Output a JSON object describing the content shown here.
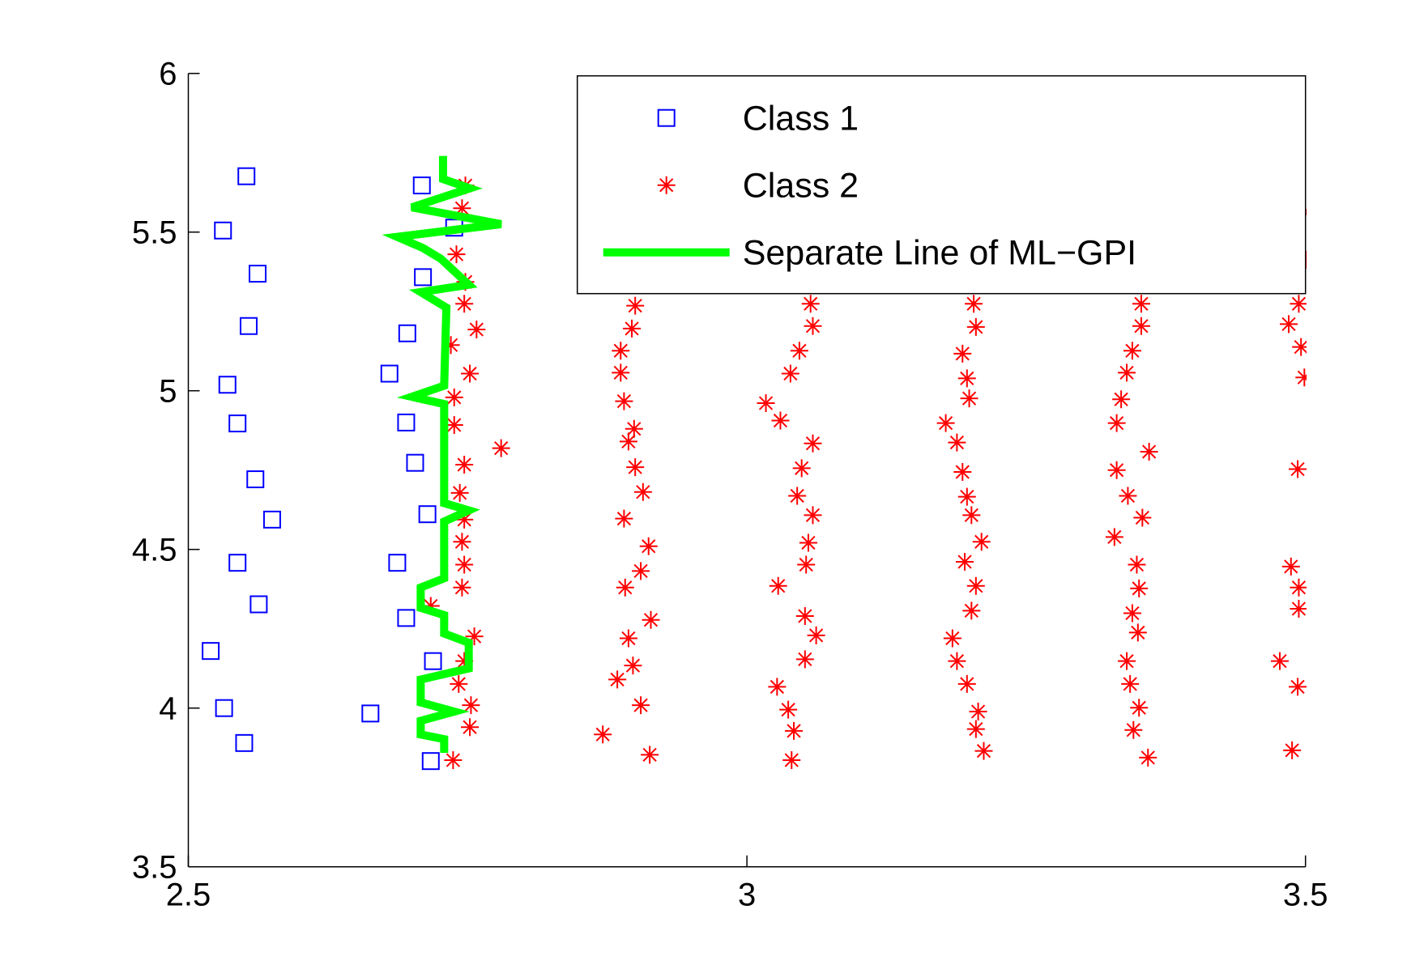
{
  "chart_data": {
    "type": "scatter",
    "xlim": [
      2.5,
      3.5
    ],
    "ylim": [
      3.5,
      6
    ],
    "xticks": [
      2.5,
      3,
      3.5
    ],
    "yticks": [
      3.5,
      4,
      4.5,
      5,
      5.5,
      6
    ],
    "legend": "upper right",
    "series": [
      {
        "name": "Class 1",
        "color": "#0000ff",
        "marker": "square",
        "x": [
          2.552,
          2.531,
          2.562,
          2.554,
          2.535,
          2.544,
          2.56,
          2.575,
          2.544,
          2.563,
          2.52,
          2.532,
          2.55,
          2.709,
          2.738,
          2.71,
          2.696,
          2.68,
          2.695,
          2.703,
          2.714,
          2.687,
          2.695,
          2.719,
          2.663,
          2.717
        ],
        "values": [
          5.676,
          5.505,
          5.369,
          5.204,
          5.019,
          4.897,
          4.721,
          4.594,
          4.458,
          4.327,
          4.18,
          4.0,
          3.89,
          5.647,
          5.514,
          5.358,
          5.181,
          5.054,
          4.9,
          4.773,
          4.611,
          4.458,
          4.284,
          4.148,
          3.983,
          3.833
        ]
      },
      {
        "name": "Class 2",
        "color": "#ff0000",
        "marker": "star",
        "x": [
          2.748,
          2.745,
          2.74,
          2.748,
          2.747,
          2.758,
          2.735,
          2.752,
          2.738,
          2.738,
          2.747,
          2.743,
          2.747,
          2.745,
          2.747,
          2.745,
          2.717,
          2.756,
          2.747,
          2.742,
          2.753,
          2.752,
          2.737,
          2.78,
          2.9,
          2.897,
          2.887,
          2.887,
          2.89,
          2.899,
          2.894,
          2.9,
          2.907,
          2.89,
          2.912,
          2.905,
          2.891,
          2.914,
          2.894,
          2.898,
          2.884,
          2.905,
          2.871,
          2.913,
          3.057,
          3.059,
          3.047,
          3.039,
          3.017,
          3.03,
          3.059,
          3.049,
          3.045,
          3.059,
          3.055,
          3.053,
          3.028,
          3.052,
          3.062,
          3.052,
          3.027,
          3.037,
          3.042,
          3.04,
          3.203,
          3.205,
          3.193,
          3.197,
          3.199,
          3.178,
          3.188,
          3.193,
          3.197,
          3.201,
          3.21,
          3.195,
          3.205,
          3.201,
          3.184,
          3.188,
          3.197,
          3.207,
          3.205,
          3.212,
          3.353,
          3.353,
          3.345,
          3.34,
          3.335,
          3.331,
          3.36,
          3.331,
          3.341,
          3.354,
          3.329,
          3.349,
          3.351,
          3.345,
          3.35,
          3.34,
          3.343,
          3.351,
          3.346,
          3.359,
          3.499,
          3.501,
          3.494,
          3.485,
          3.496,
          3.499,
          3.493,
          3.487,
          3.494,
          3.494,
          3.477,
          3.493,
          3.488
        ],
        "values": [
          5.647,
          5.575,
          5.43,
          5.343,
          5.274,
          5.193,
          5.144,
          5.054,
          4.979,
          4.892,
          4.767,
          4.678,
          4.594,
          4.524,
          4.452,
          4.38,
          4.322,
          4.226,
          4.148,
          4.076,
          4.009,
          3.94,
          3.836,
          4.819,
          5.268,
          5.196,
          5.126,
          5.057,
          4.967,
          4.88,
          4.84,
          4.759,
          4.681,
          4.597,
          4.51,
          4.432,
          4.38,
          4.278,
          4.22,
          4.134,
          4.09,
          4.009,
          3.917,
          3.853,
          5.274,
          5.204,
          5.126,
          5.054,
          4.961,
          4.906,
          4.834,
          4.756,
          4.669,
          4.608,
          4.521,
          4.452,
          4.385,
          4.29,
          4.229,
          4.154,
          4.067,
          3.995,
          3.928,
          3.836,
          5.274,
          5.201,
          5.117,
          5.039,
          4.976,
          4.898,
          4.837,
          4.744,
          4.666,
          4.608,
          4.524,
          4.461,
          4.385,
          4.307,
          4.22,
          4.148,
          4.076,
          3.989,
          3.934,
          3.865,
          5.274,
          5.204,
          5.126,
          5.057,
          4.973,
          4.898,
          4.808,
          4.75,
          4.669,
          4.6,
          4.539,
          4.452,
          4.377,
          4.299,
          4.238,
          4.148,
          4.076,
          4.001,
          3.931,
          3.844,
          5.563,
          5.413,
          5.274,
          5.21,
          5.138,
          5.042,
          4.753,
          4.446,
          4.38,
          4.313,
          4.148,
          4.067,
          3.867
        ]
      },
      {
        "name": "Separate Line of ML−GPI",
        "color": "#00ff00",
        "type": "line",
        "x": [
          2.728,
          2.728,
          2.752,
          2.7,
          2.78,
          2.687,
          2.71,
          2.726,
          2.751,
          2.708,
          2.731,
          2.729,
          2.7,
          2.729,
          2.729,
          2.751,
          2.729,
          2.729,
          2.708,
          2.708,
          2.729,
          2.729,
          2.751,
          2.751,
          2.708,
          2.708,
          2.738,
          2.708,
          2.708,
          2.729,
          2.729
        ],
        "values": [
          5.74,
          5.667,
          5.638,
          5.578,
          5.525,
          5.485,
          5.45,
          5.416,
          5.334,
          5.311,
          5.262,
          5.016,
          4.981,
          4.958,
          4.646,
          4.623,
          4.588,
          4.409,
          4.38,
          4.316,
          4.293,
          4.235,
          4.206,
          4.125,
          4.09,
          4.018,
          3.989,
          3.96,
          3.917,
          3.902,
          3.859
        ]
      }
    ]
  }
}
